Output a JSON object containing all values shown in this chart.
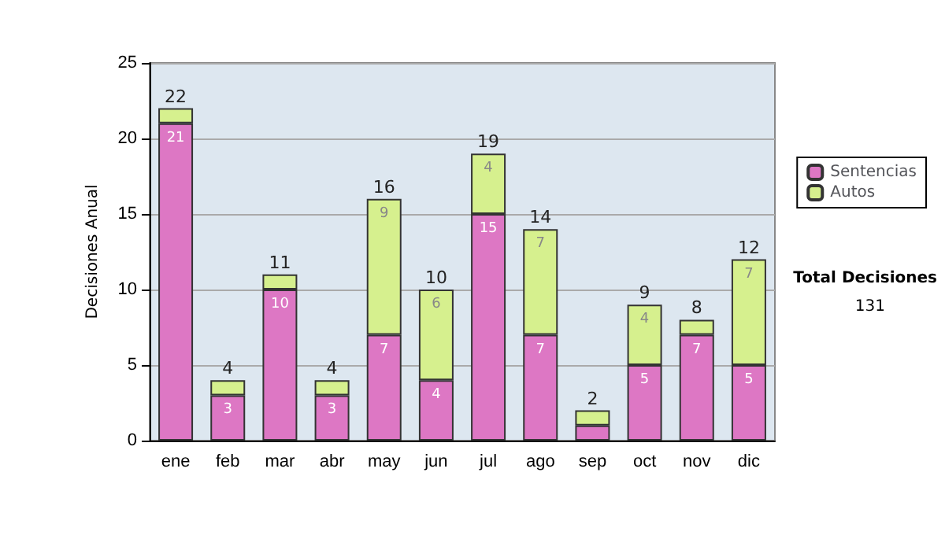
{
  "chart_data": {
    "type": "bar",
    "stacked": true,
    "ylabel": "Decisiones Anual",
    "categories": [
      "ene",
      "feb",
      "mar",
      "abr",
      "may",
      "jun",
      "jul",
      "ago",
      "sep",
      "oct",
      "nov",
      "dic"
    ],
    "series": [
      {
        "name": "Sentencias",
        "color": "#dd77c4",
        "values": [
          21,
          3,
          10,
          3,
          7,
          4,
          15,
          7,
          1,
          5,
          7,
          5
        ],
        "value_labels": [
          "21",
          "3",
          "10",
          "3",
          "7",
          "4",
          "15",
          "7",
          null,
          "5",
          "7",
          "5"
        ]
      },
      {
        "name": "Autos",
        "color": "#d6f08e",
        "values": [
          1,
          1,
          1,
          1,
          9,
          6,
          4,
          7,
          1,
          4,
          1,
          7
        ],
        "value_labels": [
          null,
          null,
          null,
          null,
          "9",
          "6",
          "4",
          "7",
          null,
          "4",
          null,
          "7"
        ]
      }
    ],
    "totals": [
      "22",
      "4",
      "11",
      "4",
      "16",
      "10",
      "19",
      "14",
      "2",
      "9",
      "8",
      "12"
    ],
    "ylim": [
      0,
      25
    ],
    "yticks": [
      0,
      5,
      10,
      15,
      20,
      25
    ],
    "grid": "y",
    "legend": "right",
    "annotations": [
      "Total Decisiones",
      "131"
    ]
  }
}
